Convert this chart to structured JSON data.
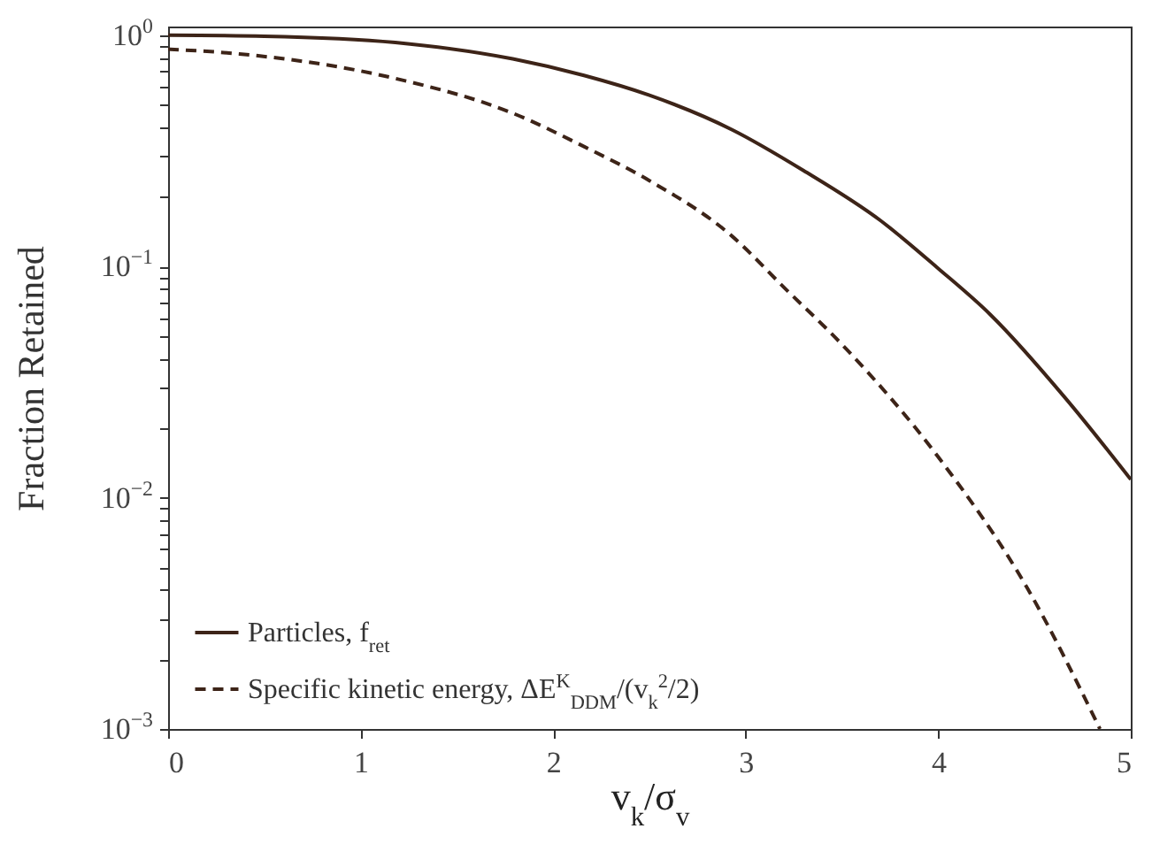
{
  "chart_data": {
    "type": "line",
    "xlabel": "v$_{k}$/σ$_{v}$",
    "ylabel": "Fraction Retained",
    "log": "y",
    "grid": false,
    "legend": "bottom left",
    "xlim": [
      0,
      5
    ],
    "xticks": [
      0,
      1,
      2,
      3,
      4,
      5
    ],
    "ylim": [
      0.001,
      1.09
    ],
    "yticks": [
      {
        "value": 0.001,
        "label": "10$^{−3}$"
      },
      {
        "value": 0.002,
        "label": null
      },
      {
        "value": 0.003,
        "label": null
      },
      {
        "value": 0.004,
        "label": null
      },
      {
        "value": 0.005,
        "label": null
      },
      {
        "value": 0.006,
        "label": null
      },
      {
        "value": 0.007,
        "label": null
      },
      {
        "value": 0.008,
        "label": null
      },
      {
        "value": 0.009,
        "label": null
      },
      {
        "value": 0.01,
        "label": "10$^{−2}$"
      },
      {
        "value": 0.02,
        "label": null
      },
      {
        "value": 0.03,
        "label": null
      },
      {
        "value": 0.04,
        "label": null
      },
      {
        "value": 0.05,
        "label": null
      },
      {
        "value": 0.06,
        "label": null
      },
      {
        "value": 0.07,
        "label": null
      },
      {
        "value": 0.08,
        "label": null
      },
      {
        "value": 0.09,
        "label": null
      },
      {
        "value": 0.1,
        "label": "10$^{−1}$"
      },
      {
        "value": 0.2,
        "label": null
      },
      {
        "value": 0.3,
        "label": null
      },
      {
        "value": 0.4,
        "label": null
      },
      {
        "value": 0.5,
        "label": null
      },
      {
        "value": 0.6,
        "label": null
      },
      {
        "value": 0.7,
        "label": null
      },
      {
        "value": 0.8,
        "label": null
      },
      {
        "value": 0.9,
        "label": null
      },
      {
        "value": 1,
        "label": "10$^{0}$"
      }
    ],
    "series": [
      {
        "name": "Particles,  f$_{ret}$",
        "color": "#3d2418",
        "line_style": "solid",
        "x": [
          0,
          0.5,
          1.18,
          1.79,
          2.16,
          2.5,
          2.93,
          3.3,
          3.7,
          4.0,
          4.27,
          4.66,
          5
        ],
        "values": [
          1.0,
          0.99,
          0.93,
          0.79,
          0.67,
          0.55,
          0.39,
          0.26,
          0.158,
          0.098,
          0.062,
          0.027,
          0.012
        ]
      },
      {
        "name": "Specific kinetic energy,  ΔE$^{K}$$_{DDM}$/(v$_{k}$$^{2}$/2)",
        "color": "#3d2418",
        "line_style": "dashed",
        "x": [
          0,
          0.37,
          1.18,
          1.79,
          2.16,
          2.5,
          2.93,
          3.2,
          3.5,
          4.0,
          4.46,
          4.84
        ],
        "values": [
          0.87,
          0.83,
          0.65,
          0.46,
          0.33,
          0.235,
          0.135,
          0.081,
          0.046,
          0.015,
          0.0041,
          0.001
        ]
      }
    ]
  }
}
